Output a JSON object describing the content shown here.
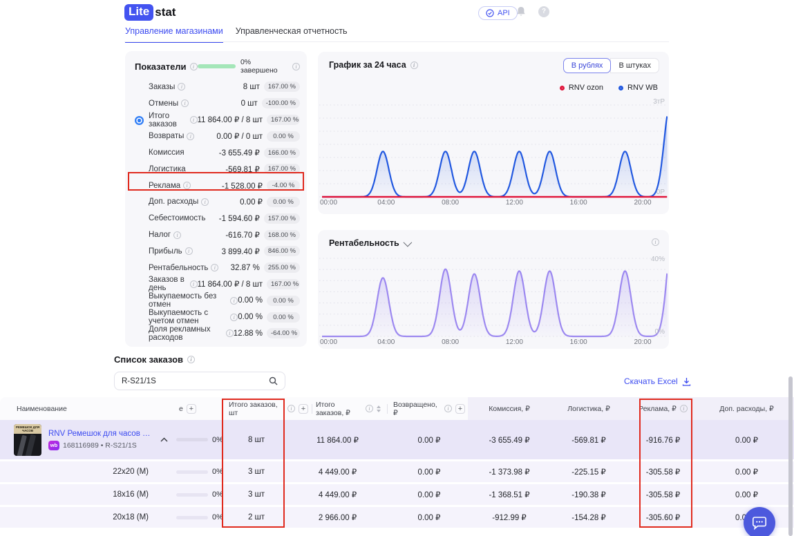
{
  "brand": {
    "name_primary": "Lite",
    "name_secondary": "stat"
  },
  "topbar": {
    "api_label": "API"
  },
  "tabs": {
    "tab1": "Управление магазинами",
    "tab2": "Управленческая отчетность"
  },
  "metrics": {
    "title": "Показатели",
    "progress_label": "0% завершено",
    "rows": [
      {
        "label": "Заказы",
        "value": "8 шт",
        "badge": "167.00 %"
      },
      {
        "label": "Отмены",
        "value": "0 шт",
        "badge": "-100.00 %"
      },
      {
        "label": "Итого заказов",
        "value": "11 864.00 ₽ / 8 шт",
        "badge": "167.00 %"
      },
      {
        "label": "Возвраты",
        "value": "0.00 ₽ / 0 шт",
        "badge": "0.00 %"
      },
      {
        "label": "Комиссия",
        "value": "-3 655.49 ₽",
        "badge": "166.00 %"
      },
      {
        "label": "Логистика",
        "value": "-569.81 ₽",
        "badge": "167.00 %"
      },
      {
        "label": "Реклама",
        "value": "-1 528.00 ₽",
        "badge": "-4.00 %"
      },
      {
        "label": "Доп. расходы",
        "value": "0.00 ₽",
        "badge": "0.00 %"
      },
      {
        "label": "Себестоимость",
        "value": "-1 594.60 ₽",
        "badge": "157.00 %"
      },
      {
        "label": "Налог",
        "value": "-616.70 ₽",
        "badge": "168.00 %"
      },
      {
        "label": "Прибыль",
        "value": "3 899.40 ₽",
        "badge": "846.00 %"
      },
      {
        "label": "Рентабельность",
        "value": "32.87 %",
        "badge": "255.00 %"
      },
      {
        "label": "Заказов в день",
        "value": "11 864.00 ₽ / 8 шт",
        "badge": "167.00 %"
      },
      {
        "label": "Выкупаемость без отмен",
        "value": "0.00 %",
        "badge": "0.00 %"
      },
      {
        "label": "Выкупаемость с учетом отмен",
        "value": "0.00 %",
        "badge": "0.00 %"
      },
      {
        "label": "Доля рекламных расходов",
        "value": "12.88 %",
        "badge": "-64.00 %"
      }
    ]
  },
  "chart_data": [
    {
      "type": "area",
      "title": "График за 24 часа",
      "toggle": {
        "options": [
          "В рублях",
          "В штуках"
        ],
        "active": "В рублях"
      },
      "x_tick_labels": [
        "00:00",
        "04:00",
        "08:00",
        "12:00",
        "16:00",
        "20:00"
      ],
      "x_tick_hours": [
        0,
        4,
        8,
        12,
        16,
        20
      ],
      "y_top_label": "3тР",
      "y_bottom_label": "0Р",
      "y_top_value": 3000,
      "ylim": [
        0,
        3100
      ],
      "grid": true,
      "legend_position": "top-right",
      "series": [
        {
          "name": "RNV ozon",
          "color": "#e0173c",
          "baseline": 0,
          "peaks": []
        },
        {
          "name": "RNV WB",
          "color": "#2158e0",
          "baseline": 0,
          "peaks": [
            {
              "t": 3.8,
              "v": 1483
            },
            {
              "t": 7.7,
              "v": 1483
            },
            {
              "t": 9.5,
              "v": 1483
            },
            {
              "t": 12.3,
              "v": 1483
            },
            {
              "t": 14.2,
              "v": 1483
            },
            {
              "t": 18.9,
              "v": 1483
            },
            {
              "t": 21.7,
              "v": 2966
            }
          ]
        }
      ]
    },
    {
      "type": "area",
      "title": "Рентабельность",
      "x_tick_labels": [
        "00:00",
        "04:00",
        "08:00",
        "12:00",
        "16:00",
        "20:00"
      ],
      "x_tick_hours": [
        0,
        4,
        8,
        12,
        16,
        20
      ],
      "y_top_label": "40%",
      "y_bottom_label": "0%",
      "y_top_value": 40,
      "ylim": [
        0,
        43
      ],
      "grid": true,
      "series": [
        {
          "name": "Рентабельность, %",
          "color": "#9c88f0",
          "baseline": 0,
          "peaks": [
            {
              "t": 3.8,
              "v": 30
            },
            {
              "t": 7.7,
              "v": 34.5
            },
            {
              "t": 9.5,
              "v": 32
            },
            {
              "t": 12.3,
              "v": 33.5
            },
            {
              "t": 14.2,
              "v": 33.5
            },
            {
              "t": 18.9,
              "v": 33.5
            },
            {
              "t": 21.9,
              "v": 55
            }
          ]
        }
      ]
    }
  ],
  "orders": {
    "title": "Список заказов",
    "search_value": "R-S21/1S",
    "download_label": "Скачать Excel"
  },
  "table": {
    "headers": {
      "name": "Наименование",
      "col2_fragment": "е",
      "qty": "Итого заказов, шт",
      "total": "Итого заказов, ₽",
      "returned": "Возвращено, ₽",
      "commission": "Комиссия, ₽",
      "logistics": "Логистика, ₽",
      "ads": "Реклама, ₽",
      "extra": "Доп. расходы, ₽"
    },
    "product": {
      "title": "RNV Ремешок для часов кожа...",
      "marketplace": "wb",
      "id_line": "168116989 • R-S21/1S",
      "thumb_text": "РЕМЕШОК ДЛЯ ЧАСОВ"
    },
    "rows": [
      {
        "name": "",
        "progress": "0%",
        "qty": "8 шт",
        "total": "11 864.00 ₽",
        "returned": "0.00 ₽",
        "commission": "-3 655.49 ₽",
        "logistics": "-569.81 ₽",
        "ads": "-916.76 ₽",
        "extra": "0.00 ₽"
      },
      {
        "name": "22x20 (M)",
        "progress": "0%",
        "qty": "3 шт",
        "total": "4 449.00 ₽",
        "returned": "0.00 ₽",
        "commission": "-1 373.98 ₽",
        "logistics": "-225.15 ₽",
        "ads": "-305.58 ₽",
        "extra": "0.00 ₽"
      },
      {
        "name": "18x16 (M)",
        "progress": "0%",
        "qty": "3 шт",
        "total": "4 449.00 ₽",
        "returned": "0.00 ₽",
        "commission": "-1 368.51 ₽",
        "logistics": "-190.38 ₽",
        "ads": "-305.58 ₽",
        "extra": "0.00 ₽"
      },
      {
        "name": "20x18 (M)",
        "progress": "0%",
        "qty": "2 шт",
        "total": "2 966.00 ₽",
        "returned": "0.00 ₽",
        "commission": "-912.99 ₽",
        "logistics": "-154.28 ₽",
        "ads": "-305.60 ₽",
        "extra": "0.00 ₽"
      }
    ]
  }
}
